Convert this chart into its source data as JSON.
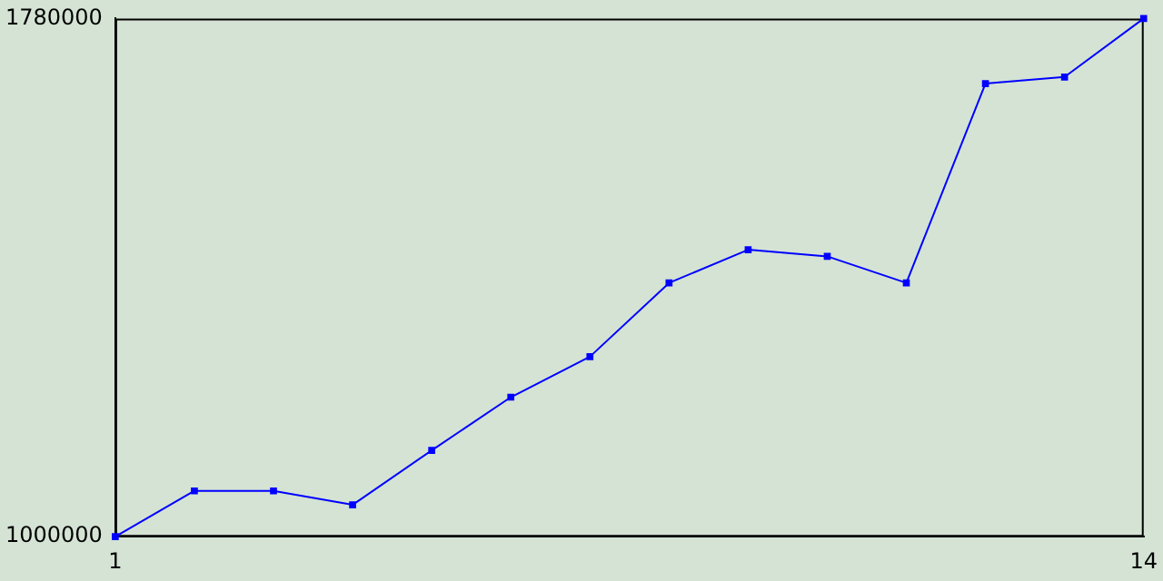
{
  "chart_data": {
    "type": "line",
    "x": [
      1,
      2,
      3,
      4,
      5,
      6,
      7,
      8,
      9,
      10,
      11,
      12,
      13,
      14
    ],
    "series": [
      {
        "color": "#0000ff",
        "values": [
          1000000,
          1069000,
          1069000,
          1048000,
          1130000,
          1210000,
          1271000,
          1382000,
          1432000,
          1422000,
          1382000,
          1682000,
          1692000,
          1780000
        ]
      }
    ],
    "xlim": [
      1,
      14
    ],
    "xticks": [
      1,
      14
    ],
    "ylim": [
      1000000,
      1780000
    ],
    "yticks": [
      1000000,
      1780000
    ],
    "grid": false,
    "legend": false,
    "marker": "square",
    "line_style": "solid"
  }
}
